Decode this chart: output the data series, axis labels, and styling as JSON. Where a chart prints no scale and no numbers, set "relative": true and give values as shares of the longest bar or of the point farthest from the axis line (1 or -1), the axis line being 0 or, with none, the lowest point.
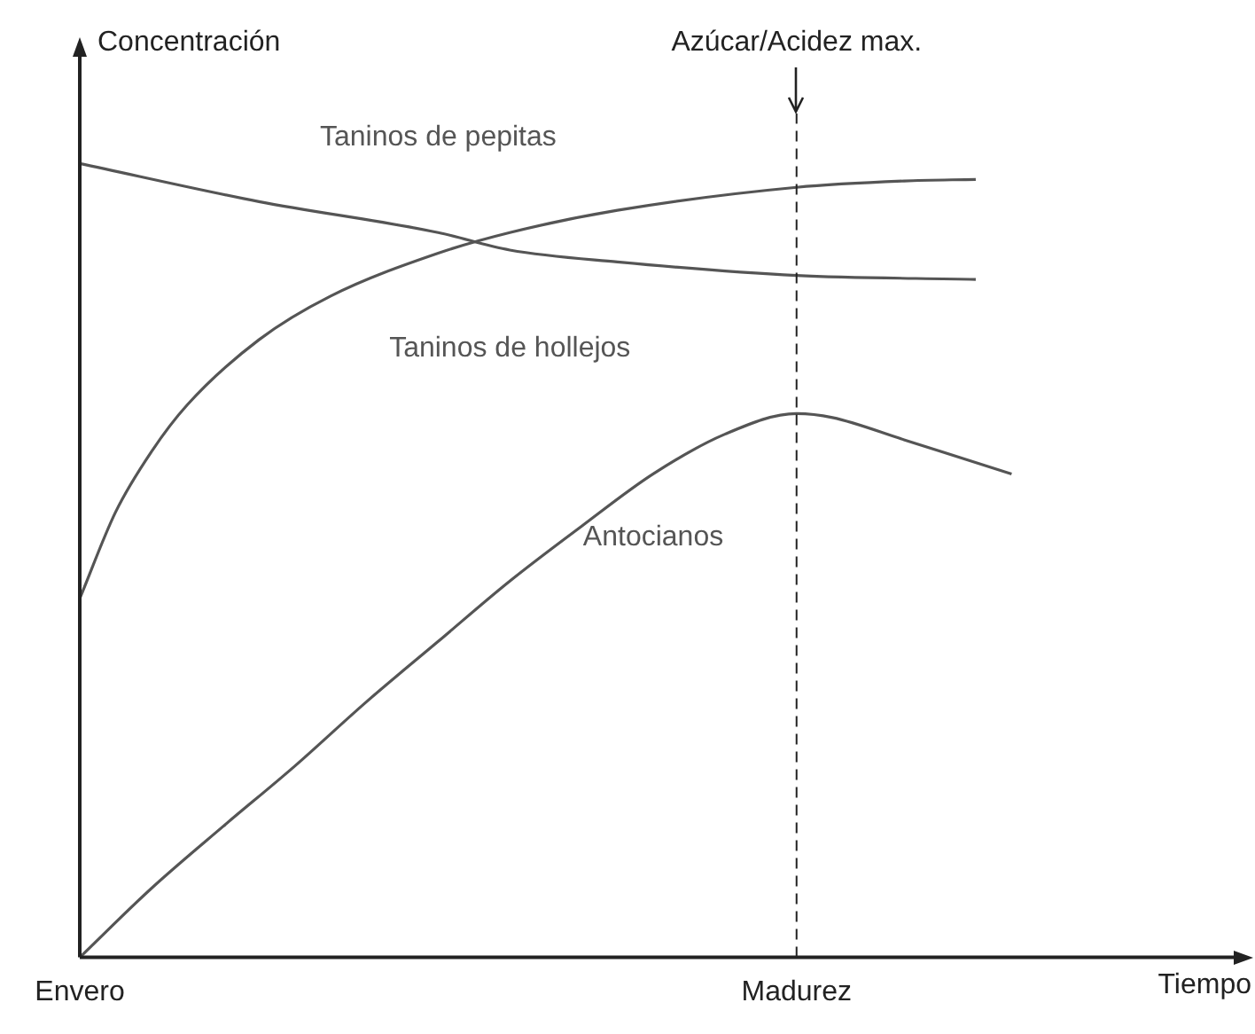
{
  "chart_data": {
    "type": "line",
    "relative": true,
    "ylabel": "Concentración",
    "xlabel": "Tiempo",
    "categories": [
      "Envero",
      null,
      null,
      null,
      null,
      null,
      null,
      null,
      null,
      null,
      null,
      null,
      null,
      null,
      null,
      null,
      null,
      null,
      null,
      null,
      "Madurez",
      null,
      null,
      null,
      null,
      null,
      null,
      null,
      null,
      null,
      null,
      null,
      null
    ],
    "series": [
      {
        "name": "Taninos de pepitas",
        "color": "#555555",
        "values": [
          1.0,
          null,
          null,
          null,
          null,
          0.952,
          null,
          null,
          null,
          null,
          0.913,
          null,
          0.891,
          null,
          null,
          0.876,
          null,
          null,
          null,
          null,
          0.859,
          null,
          null,
          null,
          null,
          0.854,
          null,
          null,
          null,
          null,
          null,
          null,
          null
        ]
      },
      {
        "name": "Taninos de hollejos",
        "color": "#555555",
        "values": [
          0.452,
          0.561,
          0.637,
          0.696,
          null,
          0.778,
          null,
          0.833,
          null,
          null,
          0.887,
          null,
          0.913,
          null,
          null,
          0.941,
          null,
          null,
          null,
          null,
          0.97,
          null,
          null,
          0.978,
          null,
          0.98,
          null,
          null,
          null,
          null,
          null,
          null,
          null
        ]
      },
      {
        "name": "Antocianos",
        "color": "#555555",
        "values": [
          0,
          null,
          0.087,
          null,
          0.165,
          null,
          0.241,
          null,
          0.322,
          null,
          0.398,
          null,
          0.474,
          null,
          0.543,
          null,
          0.609,
          null,
          0.659,
          null,
          0.685,
          0.68,
          null,
          0.652,
          null,
          null,
          0.609,
          null,
          null,
          null,
          null,
          null,
          null
        ]
      }
    ],
    "ref_lines": [
      {
        "axis": "x",
        "value": "Madurez",
        "label": "Azúcar/Acidez max.",
        "line_style": "dashed"
      }
    ],
    "grid": false,
    "legend": false,
    "marker": "none",
    "line_style": "solid"
  }
}
